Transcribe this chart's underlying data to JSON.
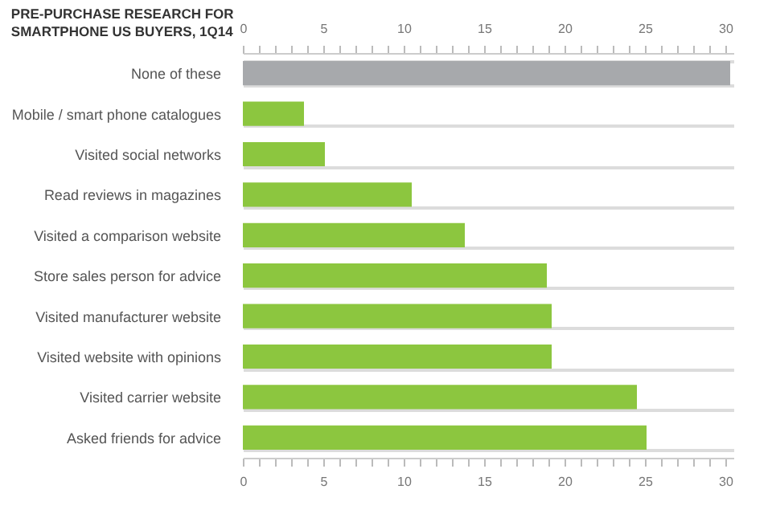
{
  "chart_data": {
    "type": "bar",
    "orientation": "horizontal",
    "title": "PRE-PURCHASE RESEARCH FOR SMARTPHONE US BUYERS, 1Q14",
    "categories": [
      "None of these",
      "Mobile / smart phone catalogues",
      "Visited social networks",
      "Read reviews in magazines",
      "Visited a comparison website",
      "Store sales person for advice",
      "Visited manufacturer website",
      "Visited website with opinions",
      "Visited carrier website",
      "Asked friends for advice"
    ],
    "values": [
      30.3,
      3.8,
      5.1,
      10.5,
      13.8,
      18.9,
      19.2,
      19.2,
      24.5,
      25.1
    ],
    "colors": [
      "#a7a9ac",
      "#8cc63f",
      "#8cc63f",
      "#8cc63f",
      "#8cc63f",
      "#8cc63f",
      "#8cc63f",
      "#8cc63f",
      "#8cc63f",
      "#8cc63f"
    ],
    "xlim": [
      0,
      30.5
    ],
    "xticks": [
      0,
      {
        "value": 1,
        "label": null
      },
      {
        "value": 2,
        "label": null
      },
      {
        "value": 3,
        "label": null
      },
      {
        "value": 4,
        "label": null
      },
      5,
      {
        "value": 6,
        "label": null
      },
      {
        "value": 7,
        "label": null
      },
      {
        "value": 8,
        "label": null
      },
      {
        "value": 9,
        "label": null
      },
      10,
      {
        "value": 11,
        "label": null
      },
      {
        "value": 12,
        "label": null
      },
      {
        "value": 13,
        "label": null
      },
      {
        "value": 14,
        "label": null
      },
      15,
      {
        "value": 16,
        "label": null
      },
      {
        "value": 17,
        "label": null
      },
      {
        "value": 18,
        "label": null
      },
      {
        "value": 19,
        "label": null
      },
      20,
      {
        "value": 21,
        "label": null
      },
      {
        "value": 22,
        "label": null
      },
      {
        "value": 23,
        "label": null
      },
      {
        "value": 24,
        "label": null
      },
      25,
      {
        "value": 26,
        "label": null
      },
      {
        "value": 27,
        "label": null
      },
      {
        "value": 28,
        "label": null
      },
      {
        "value": 29,
        "label": null
      },
      30
    ],
    "x2lim": [
      0,
      30.5
    ],
    "x2ticks": [
      0,
      {
        "value": 1,
        "label": null
      },
      {
        "value": 2,
        "label": null
      },
      {
        "value": 3,
        "label": null
      },
      {
        "value": 4,
        "label": null
      },
      5,
      {
        "value": 6,
        "label": null
      },
      {
        "value": 7,
        "label": null
      },
      {
        "value": 8,
        "label": null
      },
      {
        "value": 9,
        "label": null
      },
      10,
      {
        "value": 11,
        "label": null
      },
      {
        "value": 12,
        "label": null
      },
      {
        "value": 13,
        "label": null
      },
      {
        "value": 14,
        "label": null
      },
      15,
      {
        "value": 16,
        "label": null
      },
      {
        "value": 17,
        "label": null
      },
      {
        "value": 18,
        "label": null
      },
      {
        "value": 19,
        "label": null
      },
      20,
      {
        "value": 21,
        "label": null
      },
      {
        "value": 22,
        "label": null
      },
      {
        "value": 23,
        "label": null
      },
      {
        "value": 24,
        "label": null
      },
      25,
      {
        "value": 26,
        "label": null
      },
      {
        "value": 27,
        "label": null
      },
      {
        "value": 28,
        "label": null
      },
      {
        "value": 29,
        "label": null
      },
      30
    ],
    "grid": "y"
  }
}
